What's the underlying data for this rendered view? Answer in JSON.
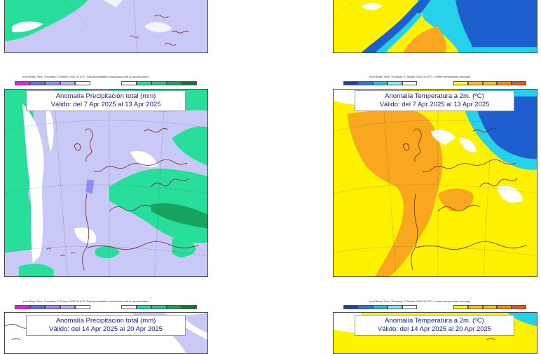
{
  "header_precip": "ecmf Base Time: Thursday 27 March 2025 00 UTC Total precipitation anomalous rate of accumulation",
  "header_temp": "ecmf Base Time: Thursday 27 March 2025 00 UTC 2 metre temperature anomaly",
  "precip_title": "Anomalía Precipitación total (mm)",
  "temp_title": "Anomalía Temperatura a 2m. (ºC)",
  "week2_valid": "Válido: del 7 Apr 2025 al 13 Apr 2025",
  "week3_valid": "Válido: del 14 Apr 2025 al 20 Apr 2025",
  "precip_colorbar": {
    "colors": [
      "#e91ee0",
      "#6b6bf0",
      "#8d8ff7",
      "#b3b5fa",
      "#ffffff",
      "#ffffff",
      "#1fe0a5",
      "#27c98d",
      "#18a35e",
      "#0d7a2f"
    ]
  },
  "temp_colorbar": {
    "colors": [
      "#1b3fb5",
      "#2a78e6",
      "#1fc3e8",
      "#8ee8f3",
      "#ffffff",
      "#ffffff",
      "#ffff00",
      "#ffc400",
      "#ff8c00",
      "#ff5000"
    ]
  },
  "colors": {
    "precip_dry": "#c8c9f7",
    "precip_wet": "#27de9b",
    "temp_warm": "#fff200",
    "temp_warmer": "#f8a71e",
    "temp_cold": "#1e5fcf",
    "temp_cool": "#26d1ea",
    "coast": "#7a1f1f"
  }
}
